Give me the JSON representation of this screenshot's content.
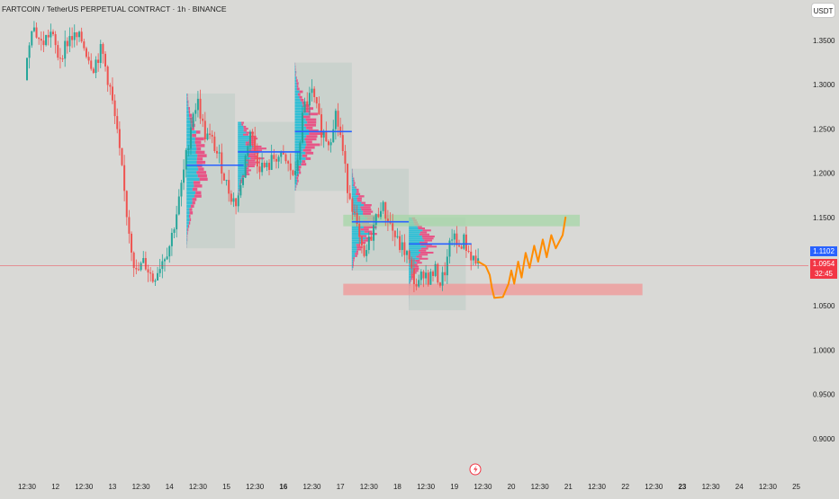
{
  "header": {
    "title": "FARTCOIN / TetherUS PERPETUAL CONTRACT · 1h · BINANCE",
    "currency": "USDT"
  },
  "price_tags": {
    "last_price": "1.1102",
    "current_price": "1.0954",
    "countdown": "32:45"
  },
  "colors": {
    "background": "#d9d9d6",
    "up": "#26a69a",
    "down": "#ef5350",
    "profile_buy": "#22bcd6",
    "profile_sell": "#ec407a",
    "poc": "#2962ff",
    "supply_zone": "#a5d6a7",
    "demand_zone": "#ef9a9a",
    "projection": "#ff8c00"
  },
  "chart_data": {
    "type": "candlestick",
    "title": "FARTCOIN / TetherUS PERPETUAL CONTRACT · 1h · BINANCE",
    "y_range": [
      0.86,
      1.385
    ],
    "y_ticks": [
      {
        "value": 1.35,
        "label": "1.3500"
      },
      {
        "value": 1.3,
        "label": "1.3000"
      },
      {
        "value": 1.25,
        "label": "1.2500"
      },
      {
        "value": 1.2,
        "label": "1.2000"
      },
      {
        "value": 1.15,
        "label": "1.1500"
      },
      {
        "value": 1.05,
        "label": "1.0500"
      },
      {
        "value": 1.0,
        "label": "1.0000"
      },
      {
        "value": 0.95,
        "label": "0.9500"
      },
      {
        "value": 0.9,
        "label": "0.9000"
      }
    ],
    "x_range": [
      11.5,
      25.2
    ],
    "x_ticks": [
      {
        "value": 11.5,
        "label": "12:30",
        "bold": false
      },
      {
        "value": 12.0,
        "label": "12",
        "bold": false
      },
      {
        "value": 12.5,
        "label": "12:30",
        "bold": false
      },
      {
        "value": 13.0,
        "label": "13",
        "bold": false
      },
      {
        "value": 13.5,
        "label": "12:30",
        "bold": false
      },
      {
        "value": 14.0,
        "label": "14",
        "bold": false
      },
      {
        "value": 14.5,
        "label": "12:30",
        "bold": false
      },
      {
        "value": 15.0,
        "label": "15",
        "bold": false
      },
      {
        "value": 15.5,
        "label": "12:30",
        "bold": false
      },
      {
        "value": 16.0,
        "label": "16",
        "bold": true
      },
      {
        "value": 16.5,
        "label": "12:30",
        "bold": false
      },
      {
        "value": 17.0,
        "label": "17",
        "bold": false
      },
      {
        "value": 17.5,
        "label": "12:30",
        "bold": false
      },
      {
        "value": 18.0,
        "label": "18",
        "bold": false
      },
      {
        "value": 18.5,
        "label": "12:30",
        "bold": false
      },
      {
        "value": 19.0,
        "label": "19",
        "bold": false
      },
      {
        "value": 19.5,
        "label": "12:30",
        "bold": false
      },
      {
        "value": 20.0,
        "label": "20",
        "bold": false
      },
      {
        "value": 20.5,
        "label": "12:30",
        "bold": false
      },
      {
        "value": 21.0,
        "label": "21",
        "bold": false
      },
      {
        "value": 21.5,
        "label": "12:30",
        "bold": false
      },
      {
        "value": 22.0,
        "label": "22",
        "bold": false
      },
      {
        "value": 22.5,
        "label": "12:30",
        "bold": false
      },
      {
        "value": 23.0,
        "label": "23",
        "bold": true
      },
      {
        "value": 23.5,
        "label": "12:30",
        "bold": false
      },
      {
        "value": 24.0,
        "label": "24",
        "bold": false
      },
      {
        "value": 24.5,
        "label": "12:30",
        "bold": false
      },
      {
        "value": 25.0,
        "label": "25",
        "bold": false
      }
    ],
    "current_price": 1.0954,
    "price_path": [
      [
        11.5,
        1.305
      ],
      [
        11.62,
        1.37
      ],
      [
        11.8,
        1.345
      ],
      [
        11.95,
        1.36
      ],
      [
        12.1,
        1.33
      ],
      [
        12.3,
        1.355
      ],
      [
        12.5,
        1.35
      ],
      [
        12.7,
        1.32
      ],
      [
        12.85,
        1.34
      ],
      [
        13.0,
        1.295
      ],
      [
        13.1,
        1.255
      ],
      [
        13.2,
        1.205
      ],
      [
        13.3,
        1.15
      ],
      [
        13.45,
        1.085
      ],
      [
        13.6,
        1.1
      ],
      [
        13.75,
        1.08
      ],
      [
        13.9,
        1.1
      ],
      [
        14.05,
        1.12
      ],
      [
        14.2,
        1.165
      ],
      [
        14.35,
        1.225
      ],
      [
        14.45,
        1.27
      ],
      [
        14.55,
        1.28
      ],
      [
        14.65,
        1.245
      ],
      [
        14.8,
        1.235
      ],
      [
        14.95,
        1.21
      ],
      [
        15.05,
        1.185
      ],
      [
        15.2,
        1.165
      ],
      [
        15.3,
        1.185
      ],
      [
        15.45,
        1.25
      ],
      [
        15.6,
        1.21
      ],
      [
        15.75,
        1.205
      ],
      [
        15.9,
        1.22
      ],
      [
        16.05,
        1.215
      ],
      [
        16.15,
        1.205
      ],
      [
        16.25,
        1.195
      ],
      [
        16.4,
        1.275
      ],
      [
        16.55,
        1.29
      ],
      [
        16.7,
        1.25
      ],
      [
        16.85,
        1.235
      ],
      [
        16.95,
        1.27
      ],
      [
        17.05,
        1.24
      ],
      [
        17.15,
        1.19
      ],
      [
        17.25,
        1.165
      ],
      [
        17.35,
        1.13
      ],
      [
        17.45,
        1.1
      ],
      [
        17.6,
        1.135
      ],
      [
        17.75,
        1.165
      ],
      [
        17.9,
        1.145
      ],
      [
        18.05,
        1.12
      ],
      [
        18.2,
        1.11
      ],
      [
        18.3,
        1.085
      ],
      [
        18.4,
        1.07
      ],
      [
        18.5,
        1.09
      ],
      [
        18.6,
        1.08
      ],
      [
        18.7,
        1.09
      ],
      [
        18.8,
        1.075
      ],
      [
        18.9,
        1.095
      ],
      [
        19.0,
        1.13
      ],
      [
        19.1,
        1.115
      ],
      [
        19.2,
        1.125
      ],
      [
        19.3,
        1.11
      ],
      [
        19.42,
        1.1
      ]
    ],
    "volume_profiles": [
      {
        "x_start": 14.3,
        "x_end": 15.15,
        "low": 1.115,
        "high": 1.29,
        "poc": 1.209,
        "poc_end": 15.3
      },
      {
        "x_start": 15.2,
        "x_end": 16.2,
        "low": 1.155,
        "high": 1.258,
        "poc": 1.224,
        "poc_end": 16.3
      },
      {
        "x_start": 16.2,
        "x_end": 17.2,
        "low": 1.18,
        "high": 1.325,
        "poc": 1.247,
        "poc_end": 17.2
      },
      {
        "x_start": 17.2,
        "x_end": 18.2,
        "low": 1.09,
        "high": 1.205,
        "poc": 1.145,
        "poc_end": 18.2
      },
      {
        "x_start": 18.2,
        "x_end": 19.2,
        "low": 1.045,
        "high": 1.15,
        "poc": 1.12,
        "poc_end": 19.3
      }
    ],
    "supply_zone": {
      "x_start": 17.05,
      "x_end": 21.2,
      "low": 1.14,
      "high": 1.153
    },
    "demand_zone": {
      "x_start": 17.05,
      "x_end": 22.3,
      "low": 1.062,
      "high": 1.075
    },
    "projection_path": [
      [
        19.42,
        1.1
      ],
      [
        19.55,
        1.095
      ],
      [
        19.62,
        1.085
      ],
      [
        19.66,
        1.07
      ],
      [
        19.7,
        1.059
      ],
      [
        19.85,
        1.06
      ],
      [
        19.95,
        1.075
      ],
      [
        20.0,
        1.09
      ],
      [
        20.05,
        1.075
      ],
      [
        20.12,
        1.1
      ],
      [
        20.18,
        1.082
      ],
      [
        20.25,
        1.11
      ],
      [
        20.32,
        1.093
      ],
      [
        20.4,
        1.118
      ],
      [
        20.47,
        1.1
      ],
      [
        20.55,
        1.125
      ],
      [
        20.62,
        1.105
      ],
      [
        20.7,
        1.13
      ],
      [
        20.78,
        1.115
      ],
      [
        20.9,
        1.13
      ],
      [
        20.95,
        1.15
      ]
    ]
  }
}
